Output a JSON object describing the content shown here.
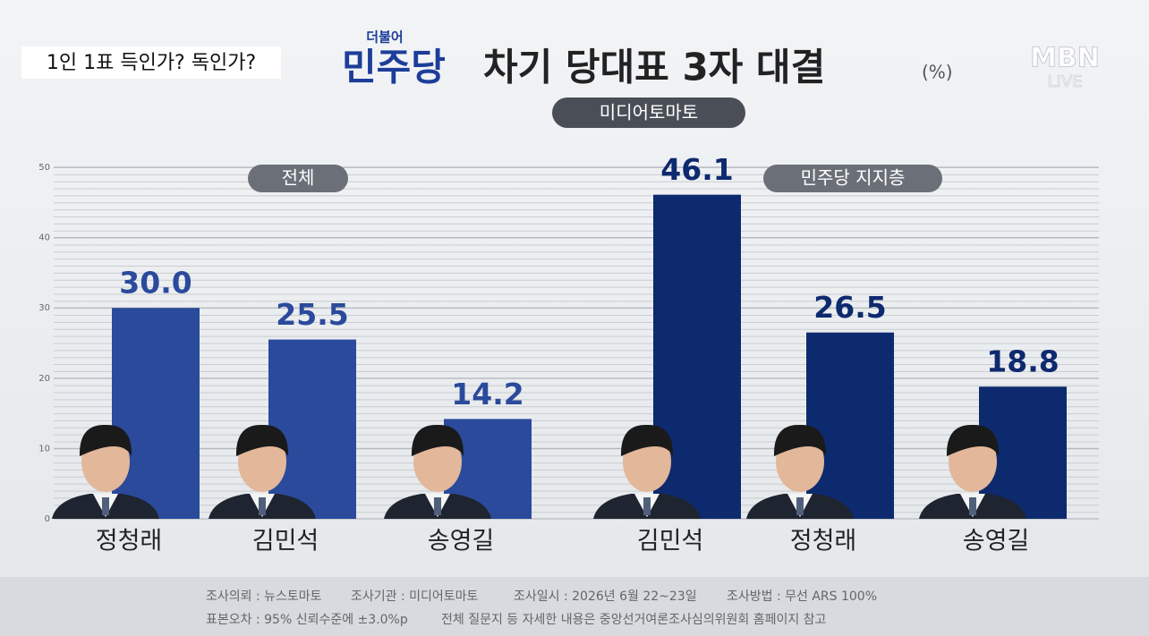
{
  "header": {
    "tag": "1인 1표 득인가? 독인가?",
    "title_prefix": "더불어",
    "title_party": "민주당",
    "title_rest": "차기 당대표 3자 대결",
    "unit": "(%)",
    "source_badge": "미디어토마토"
  },
  "logo": {
    "name": "MBN",
    "status": "LIVE"
  },
  "chart_data": {
    "type": "bar",
    "ylim": [
      0,
      50
    ],
    "yticks": [
      0,
      10,
      20,
      30,
      40,
      50
    ],
    "grid": true,
    "panels": [
      {
        "label": "전체",
        "color": "#2b4a9c",
        "categories": [
          "정청래",
          "김민석",
          "송영길"
        ],
        "values": [
          30.0,
          25.5,
          14.2
        ],
        "value_labels": [
          "30.0",
          "25.5",
          "14.2"
        ]
      },
      {
        "label": "민주당 지지층",
        "color": "#0e2a6f",
        "categories": [
          "김민석",
          "정청래",
          "송영길"
        ],
        "values": [
          46.1,
          26.5,
          18.8
        ],
        "value_labels": [
          "46.1",
          "26.5",
          "18.8"
        ]
      }
    ]
  },
  "footer": [
    [
      "조사의뢰 : 뉴스토마토",
      "조사기관 : 미디어토마토",
      "조사일시 : 2026년 6월 22~23일",
      "조사방법 : 무선 ARS 100%"
    ],
    [
      "표본오차 : 95% 신뢰수준에 ±3.0%p",
      "전체 질문지 등 자세한 내용은 중앙선거여론조사심의위원회 홈페이지 참고"
    ]
  ]
}
